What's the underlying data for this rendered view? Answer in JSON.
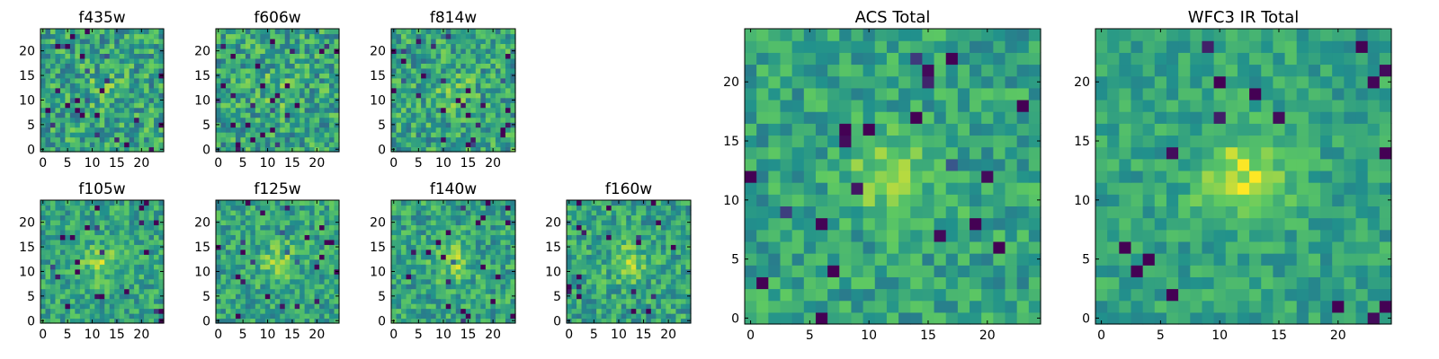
{
  "figure": {
    "background": "#ffffff",
    "colormap": "viridis",
    "colormap_stops": [
      "#440154",
      "#3b528b",
      "#21918c",
      "#5ec962",
      "#fde725"
    ]
  },
  "chart_data": [
    {
      "type": "heatmap",
      "title": "f435w",
      "grid_size": 25,
      "xlim": [
        0,
        24
      ],
      "ylim": [
        0,
        24
      ],
      "xticks": [
        0,
        5,
        10,
        15,
        20
      ],
      "yticks": [
        0,
        5,
        10,
        15,
        20
      ],
      "seed": 11,
      "noise": 0.62,
      "blob": 0.1
    },
    {
      "type": "heatmap",
      "title": "f606w",
      "grid_size": 25,
      "xlim": [
        0,
        24
      ],
      "ylim": [
        0,
        24
      ],
      "xticks": [
        0,
        5,
        10,
        15,
        20
      ],
      "yticks": [
        0,
        5,
        10,
        15,
        20
      ],
      "seed": 23,
      "noise": 0.62,
      "blob": 0.12
    },
    {
      "type": "heatmap",
      "title": "f814w",
      "grid_size": 25,
      "xlim": [
        0,
        24
      ],
      "ylim": [
        0,
        24
      ],
      "xticks": [
        0,
        5,
        10,
        15,
        20
      ],
      "yticks": [
        0,
        5,
        10,
        15,
        20
      ],
      "seed": 37,
      "noise": 0.6,
      "blob": 0.16
    },
    {
      "type": "heatmap",
      "title": "f105w",
      "grid_size": 25,
      "xlim": [
        0,
        24
      ],
      "ylim": [
        0,
        24
      ],
      "xticks": [
        0,
        5,
        10,
        15,
        20
      ],
      "yticks": [
        0,
        5,
        10,
        15,
        20
      ],
      "seed": 41,
      "noise": 0.5,
      "blob": 0.24
    },
    {
      "type": "heatmap",
      "title": "f125w",
      "grid_size": 25,
      "xlim": [
        0,
        24
      ],
      "ylim": [
        0,
        24
      ],
      "xticks": [
        0,
        5,
        10,
        15,
        20
      ],
      "yticks": [
        0,
        5,
        10,
        15,
        20
      ],
      "seed": 53,
      "noise": 0.5,
      "blob": 0.22
    },
    {
      "type": "heatmap",
      "title": "f140w",
      "grid_size": 25,
      "xlim": [
        0,
        24
      ],
      "ylim": [
        0,
        24
      ],
      "xticks": [
        0,
        5,
        10,
        15,
        20
      ],
      "yticks": [
        0,
        5,
        10,
        15,
        20
      ],
      "seed": 67,
      "noise": 0.52,
      "blob": 0.22
    },
    {
      "type": "heatmap",
      "title": "f160w",
      "grid_size": 25,
      "xlim": [
        0,
        24
      ],
      "ylim": [
        0,
        24
      ],
      "xticks": [
        0,
        5,
        10,
        15,
        20
      ],
      "yticks": [
        0,
        5,
        10,
        15,
        20
      ],
      "seed": 79,
      "noise": 0.52,
      "blob": 0.22
    },
    {
      "type": "heatmap",
      "title": "ACS Total",
      "grid_size": 25,
      "xlim": [
        0,
        24
      ],
      "ylim": [
        0,
        24
      ],
      "xticks": [
        0,
        5,
        10,
        15,
        20
      ],
      "yticks": [
        0,
        5,
        10,
        15,
        20
      ],
      "seed": 97,
      "noise": 0.45,
      "blob": 0.26
    },
    {
      "type": "heatmap",
      "title": "WFC3 IR Total",
      "grid_size": 25,
      "xlim": [
        0,
        24
      ],
      "ylim": [
        0,
        24
      ],
      "xticks": [
        0,
        5,
        10,
        15,
        20
      ],
      "yticks": [
        0,
        5,
        10,
        15,
        20
      ],
      "seed": 131,
      "noise": 0.36,
      "blob": 0.32
    }
  ]
}
